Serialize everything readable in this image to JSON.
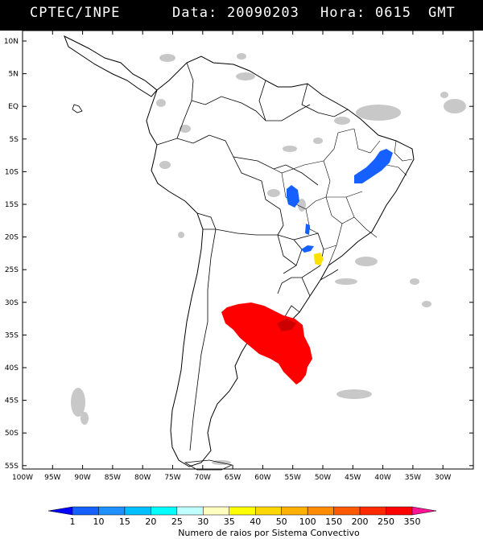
{
  "header": {
    "source": "CPTEC/INPE",
    "date_label": "Data:",
    "date": "20090203",
    "hour_label": "Hora:",
    "hour": "0615",
    "tz": "GMT"
  },
  "map": {
    "lat_ticks": [
      "10N",
      "5N",
      "EQ",
      "5S",
      "10S",
      "15S",
      "20S",
      "25S",
      "30S",
      "35S",
      "40S",
      "45S",
      "50S",
      "55S"
    ],
    "lon_ticks": [
      "100W",
      "95W",
      "90W",
      "85W",
      "80W",
      "75W",
      "70W",
      "65W",
      "60W",
      "55W",
      "50W",
      "45W",
      "40W",
      "35W",
      "30W"
    ],
    "lat_range": [
      -56,
      13
    ],
    "lon_range": [
      -100,
      -26
    ]
  },
  "colorbar": {
    "labels": [
      "1",
      "10",
      "15",
      "20",
      "25",
      "30",
      "35",
      "40",
      "50",
      "100",
      "150",
      "200",
      "250",
      "350"
    ],
    "colors": [
      "#0000ff",
      "#1560ff",
      "#1e90ff",
      "#00bfff",
      "#00ffff",
      "#c0ffff",
      "#ffffc0",
      "#ffff00",
      "#ffd700",
      "#ffb000",
      "#ff8c00",
      "#ff5a00",
      "#ff2a00",
      "#ff0000",
      "#ff1493"
    ],
    "title": "Numero de raios por Sistema Convectivo"
  },
  "colors": {
    "background": "#ffffff",
    "header": "#000000",
    "cloud": "#c8c8c8",
    "strong_system": "#ff0000",
    "blue_system": "#1560ff",
    "yellow_system": "#ffe000"
  }
}
